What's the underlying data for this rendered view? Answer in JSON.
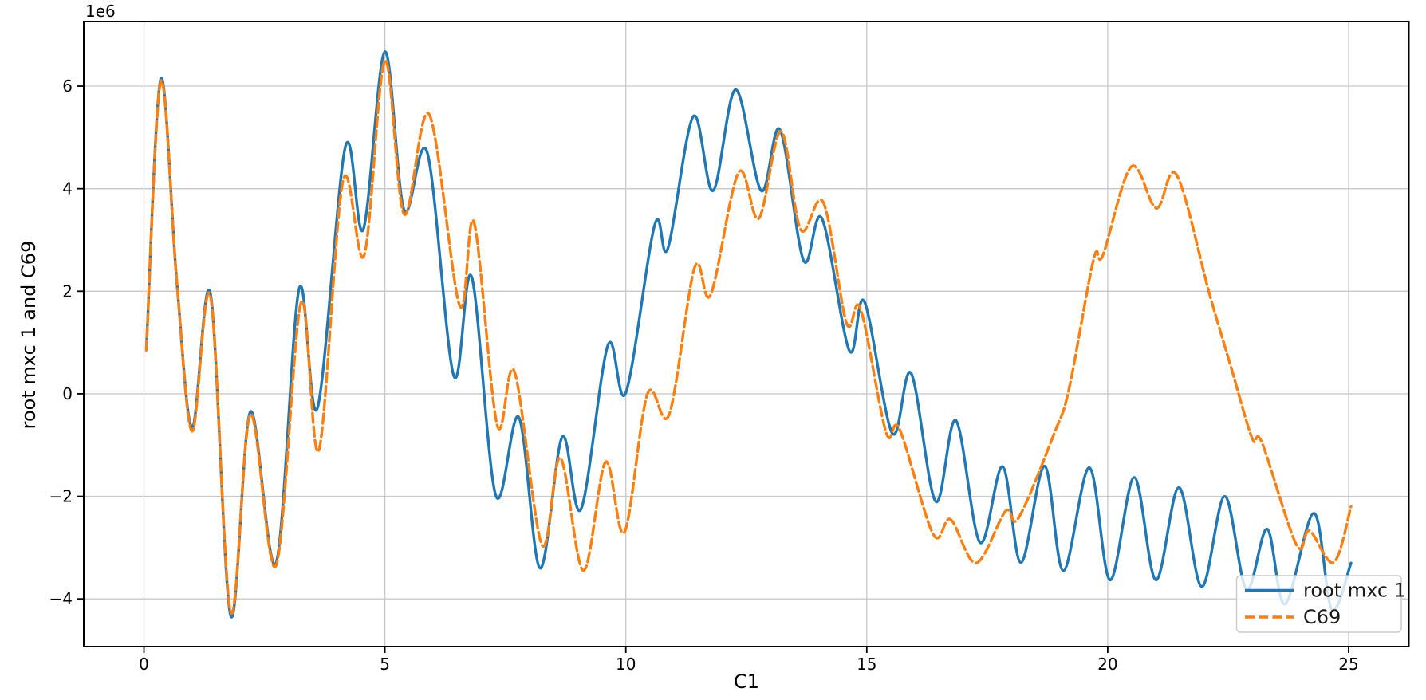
{
  "chart_data": {
    "type": "line",
    "title": "",
    "xlabel": "C1",
    "ylabel": "root mxc 1 and C69",
    "offset_text": "1e6",
    "y_scale_note": "y values are in units of 1e6 (axis offset label 1e6)",
    "x_ticks": [
      0,
      5,
      10,
      15,
      20,
      25
    ],
    "y_ticks": [
      -4,
      -2,
      0,
      2,
      4,
      6
    ],
    "xlim": [
      -1.25,
      26.25
    ],
    "ylim": [
      -4.93,
      7.26
    ],
    "grid": true,
    "legend": {
      "location": "lower right"
    },
    "colors": {
      "series1": "#1f77b4",
      "series2": "#ff7f0e",
      "grid": "#c9c9c9"
    },
    "series": [
      {
        "name": "root mxc 1",
        "color": "#1f77b4",
        "style": "solid",
        "points": [
          [
            0.05,
            0.88
          ],
          [
            0.35,
            6.15
          ],
          [
            0.68,
            2.2
          ],
          [
            1.0,
            -0.66
          ],
          [
            1.38,
            1.95
          ],
          [
            1.8,
            -4.33
          ],
          [
            2.21,
            -0.35
          ],
          [
            2.74,
            -3.3
          ],
          [
            3.22,
            2.05
          ],
          [
            3.6,
            -0.28
          ],
          [
            4.18,
            4.82
          ],
          [
            4.55,
            3.2
          ],
          [
            5.0,
            6.67
          ],
          [
            5.4,
            3.58
          ],
          [
            5.88,
            4.7
          ],
          [
            6.43,
            0.35
          ],
          [
            6.8,
            2.28
          ],
          [
            7.3,
            -1.98
          ],
          [
            7.78,
            -0.46
          ],
          [
            8.22,
            -3.4
          ],
          [
            8.68,
            -0.84
          ],
          [
            9.07,
            -2.25
          ],
          [
            9.63,
            0.95
          ],
          [
            10.0,
            0.02
          ],
          [
            10.6,
            3.3
          ],
          [
            10.87,
            2.83
          ],
          [
            11.4,
            5.41
          ],
          [
            11.81,
            3.96
          ],
          [
            12.28,
            5.93
          ],
          [
            12.81,
            3.96
          ],
          [
            13.2,
            5.15
          ],
          [
            13.69,
            2.6
          ],
          [
            14.07,
            3.42
          ],
          [
            14.64,
            0.84
          ],
          [
            14.95,
            1.8
          ],
          [
            15.53,
            -0.77
          ],
          [
            15.92,
            0.4
          ],
          [
            16.43,
            -2.1
          ],
          [
            16.85,
            -0.52
          ],
          [
            17.35,
            -2.9
          ],
          [
            17.82,
            -1.42
          ],
          [
            18.2,
            -3.29
          ],
          [
            18.69,
            -1.41
          ],
          [
            19.08,
            -3.45
          ],
          [
            19.62,
            -1.44
          ],
          [
            20.05,
            -3.63
          ],
          [
            20.55,
            -1.63
          ],
          [
            21.0,
            -3.63
          ],
          [
            21.48,
            -1.83
          ],
          [
            21.95,
            -3.76
          ],
          [
            22.43,
            -2.0
          ],
          [
            22.88,
            -3.81
          ],
          [
            23.31,
            -2.64
          ],
          [
            23.68,
            -4.1
          ],
          [
            24.28,
            -2.33
          ],
          [
            24.65,
            -4.2
          ],
          [
            25.05,
            -3.3
          ]
        ]
      },
      {
        "name": "C69",
        "color": "#ff7f0e",
        "style": "dashed",
        "points": [
          [
            0.05,
            0.85
          ],
          [
            0.35,
            6.1
          ],
          [
            0.68,
            2.2
          ],
          [
            1.0,
            -0.73
          ],
          [
            1.38,
            1.9
          ],
          [
            1.8,
            -4.26
          ],
          [
            2.21,
            -0.4
          ],
          [
            2.74,
            -3.35
          ],
          [
            3.26,
            1.78
          ],
          [
            3.63,
            -1.1
          ],
          [
            4.13,
            4.15
          ],
          [
            4.57,
            2.7
          ],
          [
            5.0,
            6.5
          ],
          [
            5.4,
            3.5
          ],
          [
            5.92,
            5.45
          ],
          [
            6.55,
            1.72
          ],
          [
            6.85,
            3.34
          ],
          [
            7.33,
            -0.61
          ],
          [
            7.69,
            0.43
          ],
          [
            8.26,
            -2.95
          ],
          [
            8.64,
            -1.25
          ],
          [
            9.12,
            -3.45
          ],
          [
            9.58,
            -1.33
          ],
          [
            9.97,
            -2.7
          ],
          [
            10.45,
            0.0
          ],
          [
            10.9,
            -0.4
          ],
          [
            11.43,
            2.47
          ],
          [
            11.76,
            1.93
          ],
          [
            12.34,
            4.32
          ],
          [
            12.76,
            3.42
          ],
          [
            13.22,
            5.12
          ],
          [
            13.63,
            3.2
          ],
          [
            14.1,
            3.73
          ],
          [
            14.58,
            1.38
          ],
          [
            14.87,
            1.66
          ],
          [
            15.4,
            -0.75
          ],
          [
            15.68,
            -0.69
          ],
          [
            16.38,
            -2.74
          ],
          [
            16.74,
            -2.45
          ],
          [
            17.27,
            -3.3
          ],
          [
            17.88,
            -2.29
          ],
          [
            18.15,
            -2.42
          ],
          [
            18.9,
            -0.75
          ],
          [
            19.2,
            0.11
          ],
          [
            19.71,
            2.63
          ],
          [
            19.9,
            2.7
          ],
          [
            20.49,
            4.43
          ],
          [
            21.01,
            3.62
          ],
          [
            21.43,
            4.27
          ],
          [
            22.12,
            1.92
          ],
          [
            22.55,
            0.55
          ],
          [
            23.0,
            -0.87
          ],
          [
            23.2,
            -0.95
          ],
          [
            23.92,
            -2.95
          ],
          [
            24.19,
            -2.67
          ],
          [
            24.69,
            -3.29
          ],
          [
            25.05,
            -2.2
          ]
        ]
      }
    ]
  }
}
